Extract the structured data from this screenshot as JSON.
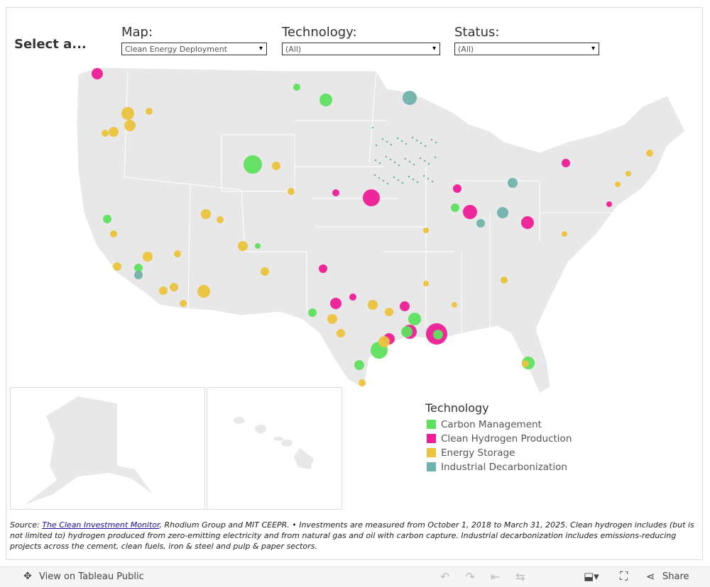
{
  "header": {
    "prompt": "Select a...",
    "filters": [
      {
        "label": "Map:",
        "value": "Clean Energy Deployment"
      },
      {
        "label": "Technology:",
        "value": "(All)"
      },
      {
        "label": "Status:",
        "value": "(All)"
      }
    ]
  },
  "legend": {
    "title": "Technology",
    "items": [
      {
        "label": "Carbon Management",
        "color": "#5ee05e"
      },
      {
        "label": "Clean Hydrogen Production",
        "color": "#ee1c96"
      },
      {
        "label": "Energy Storage",
        "color": "#ebc33c"
      },
      {
        "label": "Industrial Decarbonization",
        "color": "#70b3ac"
      }
    ]
  },
  "source": {
    "prefix": "Source: ",
    "link": "The Clean Investment Monitor",
    "text": ", Rhodium Group and MIT CEEPR. • Investments are measured from October 1, 2018 to March 31, 2025. Clean hydrogen includes (but is not limited to) hydrogen produced from zero-emitting electricity and from natural gas and oil with carbon capture. Industrial decarbonization includes emissions-reducing projects across the cement, clean fuels, iron & steel and pulp & paper sectors."
  },
  "toolbar": {
    "view": "View on Tableau Public",
    "share": "Share"
  }
}
